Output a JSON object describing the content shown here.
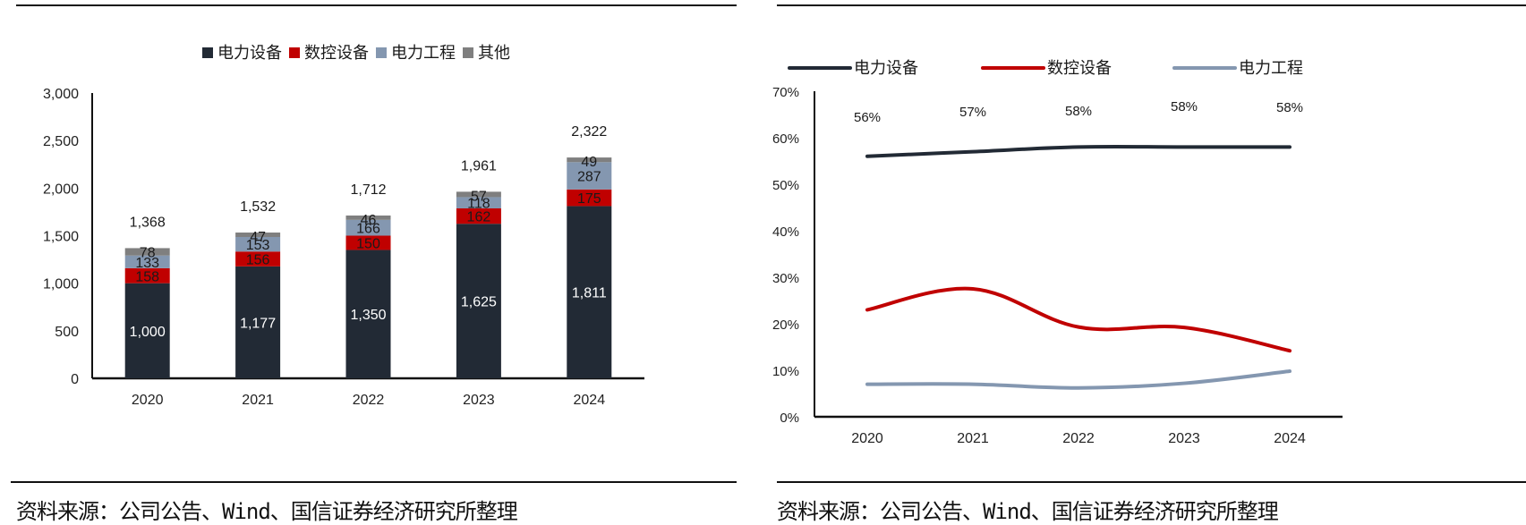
{
  "source_note": "资料来源：公司公告、Wind、国信证券经济研究所整理",
  "colors": {
    "power_equipment": "#222a35",
    "cnc_equipment": "#c00000",
    "power_engineering": "#8497b0",
    "other": "#7f7f7f"
  },
  "chart_data": [
    {
      "type": "bar",
      "stacked": true,
      "title": "",
      "xlabel": "",
      "ylabel": "",
      "categories": [
        "2020",
        "2021",
        "2022",
        "2023",
        "2024"
      ],
      "series": [
        {
          "name": "电力设备",
          "values": [
            1000,
            1177,
            1350,
            1625,
            1811
          ],
          "labels": [
            "1,000",
            "1,177",
            "1,350",
            "1,625",
            "1,811"
          ]
        },
        {
          "name": "数控设备",
          "values": [
            158,
            156,
            150,
            162,
            175
          ],
          "labels": [
            "158",
            "156",
            "150",
            "162",
            "175"
          ]
        },
        {
          "name": "电力工程",
          "values": [
            133,
            153,
            166,
            118,
            287
          ],
          "labels": [
            "133",
            "153",
            "166",
            "118",
            "287"
          ]
        },
        {
          "name": "其他",
          "values": [
            78,
            47,
            46,
            57,
            49
          ],
          "labels": [
            "78",
            "47",
            "46",
            "57",
            "49"
          ]
        }
      ],
      "totals": [
        1368,
        1532,
        1712,
        1961,
        2322
      ],
      "total_labels": [
        "1,368",
        "1,532",
        "1,712",
        "1,961",
        "2,322"
      ],
      "ylim": [
        0,
        3000
      ],
      "yticks": [
        0,
        500,
        1000,
        1500,
        2000,
        2500,
        3000
      ],
      "ytick_labels": [
        "0",
        "500",
        "1,000",
        "1,500",
        "2,000",
        "2,500",
        "3,000"
      ],
      "legend_position": "top-center",
      "grid": false
    },
    {
      "type": "line",
      "title": "",
      "xlabel": "",
      "ylabel": "",
      "categories": [
        "2020",
        "2021",
        "2022",
        "2023",
        "2024"
      ],
      "series": [
        {
          "name": "电力设备",
          "values": [
            56,
            57,
            58,
            58,
            58
          ],
          "labels": [
            "56%",
            "57%",
            "58%",
            "58%",
            "58%"
          ]
        },
        {
          "name": "数控设备",
          "values": [
            23,
            27.5,
            19.3,
            19.2,
            14.2
          ]
        },
        {
          "name": "电力工程",
          "values": [
            7,
            7,
            6.2,
            7.2,
            9.8
          ]
        }
      ],
      "ylim": [
        0,
        70
      ],
      "yticks": [
        0,
        10,
        20,
        30,
        40,
        50,
        60,
        70
      ],
      "ytick_labels": [
        "0%",
        "10%",
        "20%",
        "30%",
        "40%",
        "50%",
        "60%",
        "70%"
      ],
      "smooth": true,
      "legend_position": "top-center",
      "grid": false
    }
  ]
}
